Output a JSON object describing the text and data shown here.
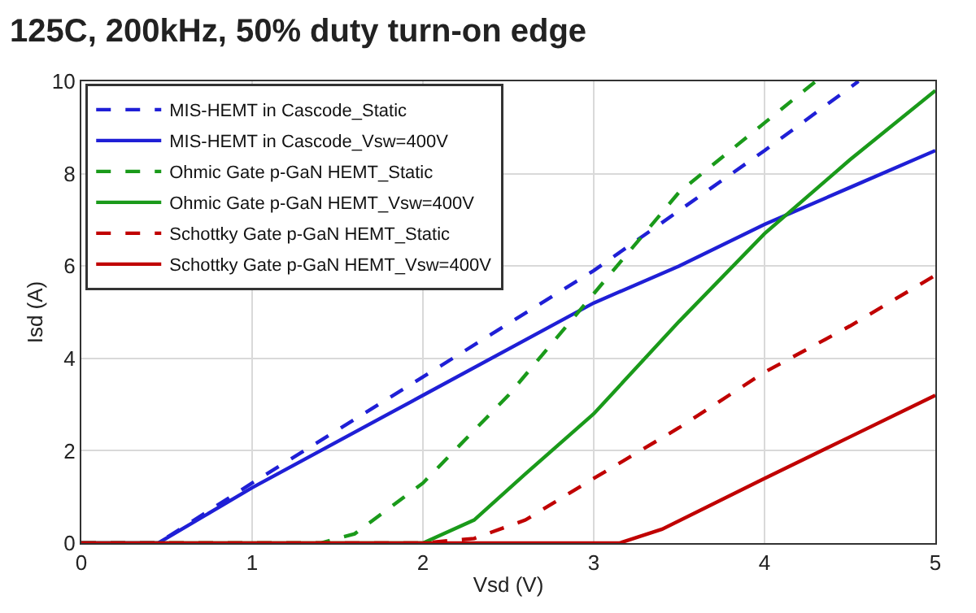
{
  "chart_data": {
    "type": "line",
    "title": "125C, 200kHz, 50% duty turn-on edge",
    "xlabel": "Vsd (V)",
    "ylabel": "Isd (A)",
    "xlim": [
      0,
      5
    ],
    "xticks": [
      0,
      1,
      2,
      3,
      4,
      5
    ],
    "ylim": [
      0,
      10
    ],
    "yticks": [
      0,
      2,
      4,
      6,
      8,
      10
    ],
    "grid": true,
    "legend": "top left",
    "marker": "none",
    "series": [
      {
        "name": "MIS-HEMT in Cascode_Static",
        "color": "#1f1fd6",
        "line_style": "dashed",
        "x": [
          0,
          0.45,
          1,
          2,
          3,
          4,
          4.55
        ],
        "values": [
          0,
          0,
          1.3,
          3.6,
          5.9,
          8.5,
          10
        ]
      },
      {
        "name": "MIS-HEMT in Cascode_Vsw=400V",
        "color": "#1f1fd6",
        "line_style": "solid",
        "x": [
          0,
          0.45,
          1,
          2,
          3,
          3.5,
          4,
          4.5,
          5
        ],
        "values": [
          0,
          0,
          1.2,
          3.2,
          5.2,
          6.0,
          6.9,
          7.7,
          8.5
        ]
      },
      {
        "name": "Ohmic Gate p-GaN HEMT_Static",
        "color": "#1a9a1a",
        "line_style": "dashed",
        "x": [
          0,
          1.4,
          1.6,
          2,
          2.5,
          3,
          3.5,
          4,
          4.3
        ],
        "values": [
          0,
          0,
          0.2,
          1.3,
          3.2,
          5.4,
          7.6,
          9.1,
          10
        ]
      },
      {
        "name": "Ohmic Gate p-GaN HEMT_Vsw=400V",
        "color": "#1a9a1a",
        "line_style": "solid",
        "x": [
          0,
          2.0,
          2.3,
          2.6,
          3,
          3.5,
          4,
          4.5,
          5
        ],
        "values": [
          0,
          0,
          0.5,
          1.5,
          2.8,
          4.8,
          6.7,
          8.3,
          9.8
        ]
      },
      {
        "name": "Schottky Gate p-GaN HEMT_Static",
        "color": "#c00000",
        "line_style": "dashed",
        "x": [
          0,
          2.0,
          2.3,
          2.6,
          3,
          3.5,
          4,
          4.5,
          5
        ],
        "values": [
          0,
          0,
          0.1,
          0.5,
          1.4,
          2.5,
          3.7,
          4.7,
          5.8
        ]
      },
      {
        "name": "Schottky Gate p-GaN HEMT_Vsw=400V",
        "color": "#c00000",
        "line_style": "solid",
        "x": [
          0,
          3.15,
          3.4,
          4,
          4.5,
          5
        ],
        "values": [
          0,
          0,
          0.3,
          1.4,
          2.3,
          3.2
        ]
      }
    ]
  }
}
